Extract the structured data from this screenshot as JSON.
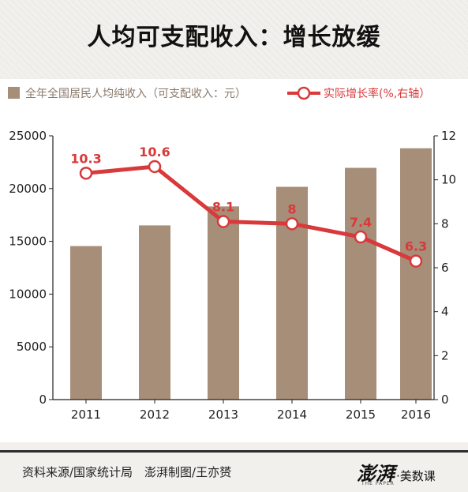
{
  "title": "人均可支配收入：增长放缓",
  "legend": {
    "bar_label": "全年全国居民人均纯收入（可支配收入：元）",
    "line_label": "实际增长率(%,右轴）"
  },
  "footer": {
    "source": "资料来源/国家统计局　澎湃制图/王亦赟",
    "brand_main": "澎湃",
    "brand_sub": "·美数课",
    "brand_tiny": "THE PAPER"
  },
  "colors": {
    "bar": "#a68e79",
    "line": "#d9393a",
    "axis": "#222222"
  },
  "chart_data": {
    "type": "bar+line",
    "categories": [
      "2011",
      "2012",
      "2013",
      "2014",
      "2015",
      "2016"
    ],
    "series": [
      {
        "name": "全年全国居民人均纯收入（可支配收入：元）",
        "type": "bar",
        "axis": "left",
        "values": [
          14550,
          16510,
          18311,
          20167,
          21966,
          23821
        ]
      },
      {
        "name": "实际增长率(%,右轴）",
        "type": "line",
        "axis": "right",
        "values": [
          10.3,
          10.6,
          8.1,
          8,
          7.4,
          6.3
        ],
        "labels": [
          "10.3",
          "10.6",
          "8.1",
          "8",
          "7.4",
          "6.3"
        ]
      }
    ],
    "left_axis": {
      "ylim": [
        0,
        25000
      ],
      "ticks": [
        "0",
        "5000",
        "10000",
        "15000",
        "20000",
        "25000"
      ]
    },
    "right_axis": {
      "ylim": [
        0,
        12
      ],
      "ticks": [
        "0",
        "2",
        "4",
        "6",
        "8",
        "10",
        "12"
      ]
    },
    "grid": false
  }
}
